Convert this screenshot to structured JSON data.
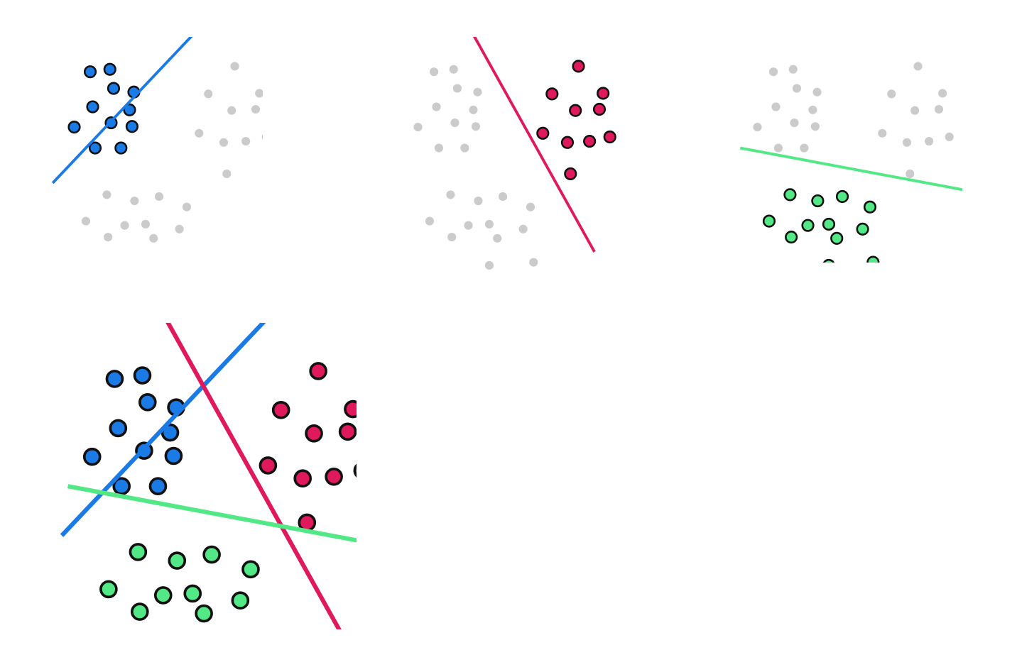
{
  "colors": {
    "blue": "#1a7ae6",
    "pink": "#e0185c",
    "green": "#52e885",
    "inactive": "#cbcbcb",
    "outline": "#111111",
    "background": "#ffffff"
  },
  "clusters": {
    "blue": {
      "name": "blue-cluster",
      "points": [
        [
          52,
          36
        ],
        [
          84,
          32
        ],
        [
          90,
          63
        ],
        [
          123,
          69
        ],
        [
          56,
          93
        ],
        [
          116,
          98
        ],
        [
          26,
          126
        ],
        [
          86,
          119
        ],
        [
          120,
          125
        ],
        [
          60,
          160
        ],
        [
          102,
          160
        ]
      ]
    },
    "pink": {
      "name": "pink-cluster",
      "points": [
        [
          287,
          27
        ],
        [
          244,
          72
        ],
        [
          327,
          71
        ],
        [
          282,
          99
        ],
        [
          321,
          97
        ],
        [
          229,
          136
        ],
        [
          269,
          151
        ],
        [
          305,
          149
        ],
        [
          338,
          142
        ],
        [
          274,
          202
        ]
      ]
    },
    "green": {
      "name": "green-cluster",
      "points": [
        [
          79,
          236
        ],
        [
          124,
          246
        ],
        [
          164,
          239
        ],
        [
          209,
          256
        ],
        [
          45,
          279
        ],
        [
          108,
          286
        ],
        [
          142,
          284
        ],
        [
          197,
          292
        ],
        [
          81,
          305
        ],
        [
          155,
          307
        ],
        [
          142,
          351
        ],
        [
          214,
          346
        ]
      ]
    }
  },
  "panels": [
    {
      "name": "panel-blue-vs-rest",
      "highlight": "blue",
      "line": [
        [
          -9,
          217
        ],
        [
          248,
          -55
        ]
      ]
    },
    {
      "name": "panel-pink-vs-rest",
      "highlight": "pink",
      "line": [
        [
          99,
          -55
        ],
        [
          313,
          329
        ]
      ]
    },
    {
      "name": "panel-green-vs-rest",
      "highlight": "green",
      "line": [
        [
          -2,
          160
        ],
        [
          499,
          254
        ]
      ]
    },
    {
      "name": "panel-combined",
      "highlight": "all",
      "lines": [
        "blue",
        "pink",
        "green"
      ]
    }
  ]
}
